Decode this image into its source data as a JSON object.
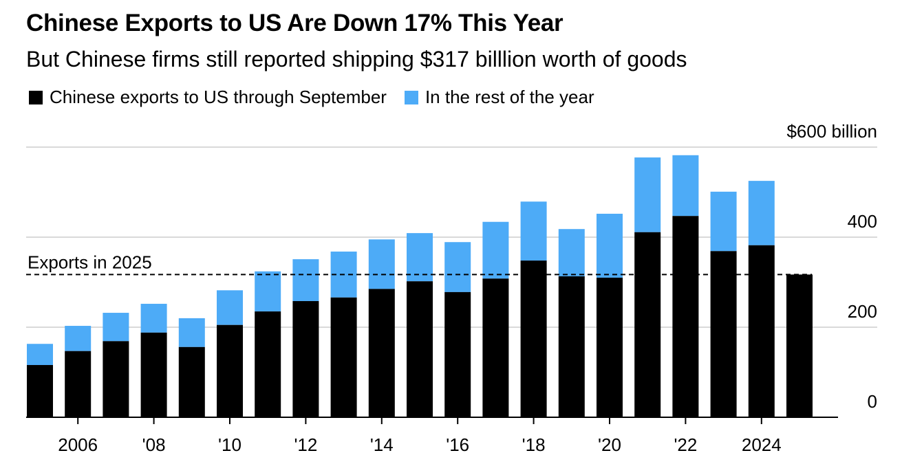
{
  "chart_data": {
    "type": "bar",
    "stacked": true,
    "title": "Chinese Exports to US Are Down 17% This Year",
    "subtitle": "But Chinese firms still reported shipping $317 billlion worth of goods",
    "categories": [
      2005,
      2006,
      2007,
      2008,
      2009,
      2010,
      2011,
      2012,
      2013,
      2014,
      2015,
      2016,
      2017,
      2018,
      2019,
      2020,
      2021,
      2022,
      2023,
      2024,
      2025
    ],
    "series": [
      {
        "name": "Chinese exports to US through September",
        "color": "#000000",
        "values": [
          116,
          147,
          169,
          188,
          156,
          205,
          235,
          258,
          266,
          285,
          302,
          278,
          308,
          348,
          313,
          310,
          411,
          447,
          369,
          382,
          317
        ]
      },
      {
        "name": "In the rest of the year",
        "color": "#4dabf7",
        "values": [
          47,
          56,
          63,
          64,
          64,
          77,
          89,
          93,
          102,
          110,
          107,
          111,
          126,
          131,
          105,
          142,
          166,
          135,
          132,
          143,
          null
        ]
      }
    ],
    "x_tick_labels": [
      {
        "year": 2006,
        "label": "2006"
      },
      {
        "year": 2008,
        "label": "'08"
      },
      {
        "year": 2010,
        "label": "'10"
      },
      {
        "year": 2012,
        "label": "'12"
      },
      {
        "year": 2014,
        "label": "'14"
      },
      {
        "year": 2016,
        "label": "'16"
      },
      {
        "year": 2018,
        "label": "'18"
      },
      {
        "year": 2020,
        "label": "'20"
      },
      {
        "year": 2022,
        "label": "'22"
      },
      {
        "year": 2024,
        "label": "2024"
      }
    ],
    "y_ticks": [
      {
        "value": 0,
        "label": "0"
      },
      {
        "value": 200,
        "label": "200"
      },
      {
        "value": 400,
        "label": "400"
      },
      {
        "value": 600,
        "label": "$600 billion"
      }
    ],
    "ylim": [
      0,
      600
    ],
    "grid": true,
    "y_axis_side": "right",
    "legend_position": "top-left",
    "reference_line": {
      "value": 317,
      "label": "Exports in 2025",
      "style": "dashed"
    }
  }
}
